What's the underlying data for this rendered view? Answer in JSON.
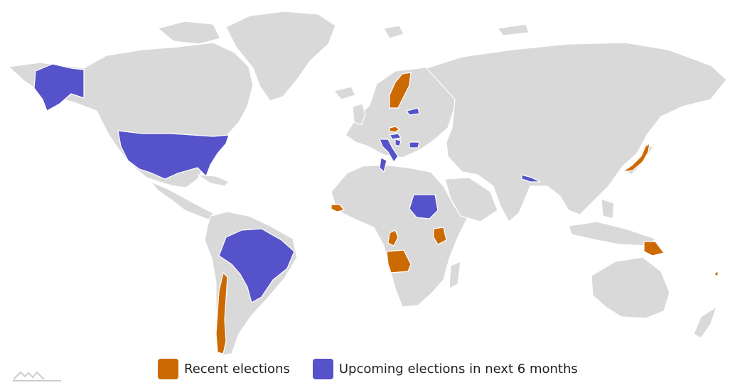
{
  "colors": {
    "background": "#ffffff",
    "land_default": "#d9d9d9",
    "recent": "#cc6a02",
    "upcoming": "#5652c9",
    "border": "#ffffff",
    "logo": "#cccccc"
  },
  "legend": {
    "items": [
      {
        "key": "recent",
        "label": "Recent elections",
        "color": "#cc6a02"
      },
      {
        "key": "upcoming",
        "label": "Upcoming elections in next 6 months",
        "color": "#5652c9"
      }
    ]
  },
  "map": {
    "projection": "Miller",
    "categories": {
      "recent": [
        "Sweden",
        "Czech Republic",
        "Senegal",
        "Republic of the Congo",
        "Angola",
        "Kenya",
        "Chile",
        "Japan",
        "Papua New Guinea",
        "Vanuatu"
      ],
      "upcoming": [
        "United States",
        "Brazil",
        "Latvia",
        "Hungary",
        "Italy",
        "Bosnia and Herzegovina",
        "Bulgaria",
        "Tunisia",
        "Sudan",
        "Nepal"
      ]
    }
  },
  "logo": {
    "icon": "mountain-line-icon"
  }
}
